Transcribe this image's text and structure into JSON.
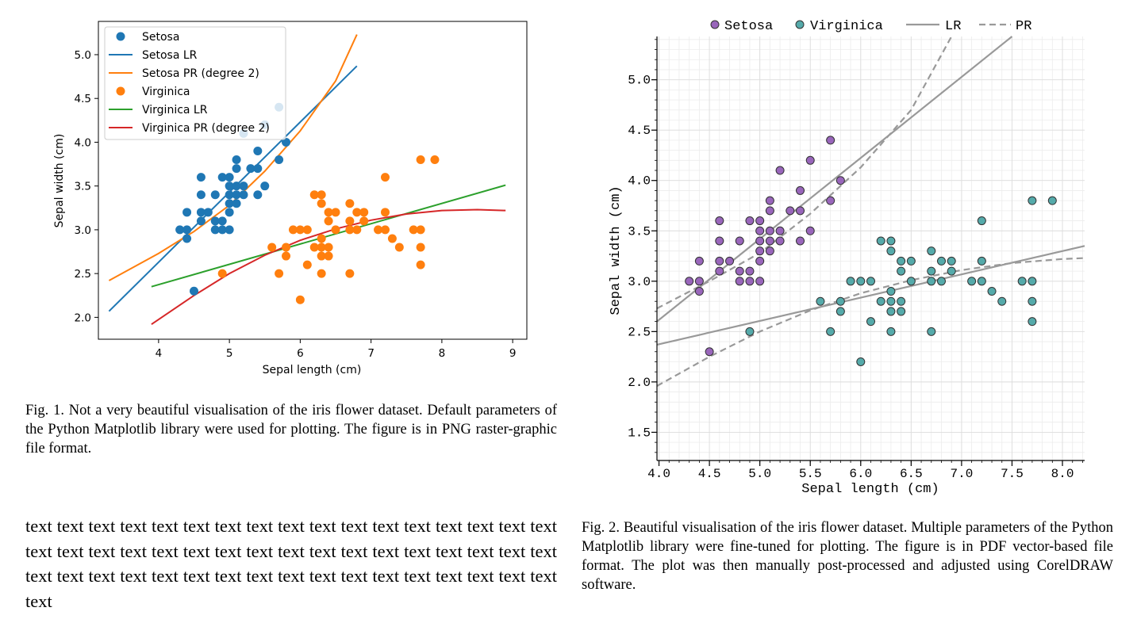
{
  "chart_data": [
    {
      "type": "scatter",
      "xlabel": "Sepal length (cm)",
      "ylabel": "Sepal width (cm)",
      "xlim": [
        3.15,
        9.2
      ],
      "ylim": [
        1.75,
        5.38
      ],
      "xticks": [
        4,
        5,
        6,
        7,
        8,
        9
      ],
      "yticks": [
        2.0,
        2.5,
        3.0,
        3.5,
        4.0,
        4.5,
        5.0
      ],
      "xtick_labels": [
        "4",
        "5",
        "6",
        "7",
        "8",
        "9"
      ],
      "ytick_labels": [
        "2.0",
        "2.5",
        "3.0",
        "3.5",
        "4.0",
        "4.5",
        "5.0"
      ],
      "legend_position": "upper-left",
      "legend": [
        "Setosa",
        "Setosa LR",
        "Setosa PR (degree 2)",
        "Virginica",
        "Virginica LR",
        "Virginica PR (degree 2)"
      ],
      "grid": false,
      "colors": {
        "setosa": "#1f77b4",
        "setosa_pr": "#ff7f0e",
        "virginica": "#ff7f0e",
        "virginica_lr": "#2ca02c",
        "virginica_pr": "#d62728"
      },
      "series": [
        {
          "name": "Setosa",
          "kind": "scatter",
          "points": [
            [
              4.3,
              3.0
            ],
            [
              4.4,
              2.9
            ],
            [
              4.4,
              3.0
            ],
            [
              4.4,
              3.2
            ],
            [
              4.5,
              2.3
            ],
            [
              4.6,
              3.1
            ],
            [
              4.6,
              3.2
            ],
            [
              4.6,
              3.4
            ],
            [
              4.6,
              3.6
            ],
            [
              4.7,
              3.2
            ],
            [
              4.8,
              3.0
            ],
            [
              4.8,
              3.1
            ],
            [
              4.8,
              3.4
            ],
            [
              4.9,
              3.0
            ],
            [
              4.9,
              3.1
            ],
            [
              4.9,
              3.6
            ],
            [
              5.0,
              3.0
            ],
            [
              5.0,
              3.2
            ],
            [
              5.0,
              3.3
            ],
            [
              5.0,
              3.4
            ],
            [
              5.0,
              3.5
            ],
            [
              5.0,
              3.6
            ],
            [
              5.1,
              3.3
            ],
            [
              5.1,
              3.4
            ],
            [
              5.1,
              3.5
            ],
            [
              5.1,
              3.7
            ],
            [
              5.1,
              3.8
            ],
            [
              5.2,
              3.4
            ],
            [
              5.2,
              3.5
            ],
            [
              5.2,
              4.1
            ],
            [
              5.3,
              3.7
            ],
            [
              5.4,
              3.4
            ],
            [
              5.4,
              3.7
            ],
            [
              5.4,
              3.9
            ],
            [
              5.5,
              3.5
            ],
            [
              5.5,
              4.2
            ],
            [
              5.7,
              3.8
            ],
            [
              5.7,
              4.4
            ],
            [
              5.8,
              4.0
            ]
          ]
        },
        {
          "name": "Setosa LR",
          "kind": "line",
          "points": [
            [
              3.3,
              2.07
            ],
            [
              6.8,
              4.87
            ]
          ]
        },
        {
          "name": "Setosa PR (degree 2)",
          "kind": "curve",
          "points": [
            [
              3.3,
              2.42
            ],
            [
              4.0,
              2.73
            ],
            [
              4.5,
              2.98
            ],
            [
              5.0,
              3.28
            ],
            [
              5.5,
              3.67
            ],
            [
              6.0,
              4.13
            ],
            [
              6.5,
              4.7
            ],
            [
              6.8,
              5.23
            ]
          ]
        },
        {
          "name": "Virginica",
          "kind": "scatter",
          "points": [
            [
              4.9,
              2.5
            ],
            [
              5.6,
              2.8
            ],
            [
              5.7,
              2.5
            ],
            [
              5.8,
              2.7
            ],
            [
              5.8,
              2.8
            ],
            [
              5.9,
              3.0
            ],
            [
              6.0,
              2.2
            ],
            [
              6.0,
              3.0
            ],
            [
              6.1,
              2.6
            ],
            [
              6.1,
              3.0
            ],
            [
              6.2,
              2.8
            ],
            [
              6.2,
              3.4
            ],
            [
              6.3,
              2.5
            ],
            [
              6.3,
              2.7
            ],
            [
              6.3,
              2.8
            ],
            [
              6.3,
              2.9
            ],
            [
              6.3,
              3.3
            ],
            [
              6.3,
              3.4
            ],
            [
              6.4,
              2.7
            ],
            [
              6.4,
              2.8
            ],
            [
              6.4,
              3.1
            ],
            [
              6.4,
              3.2
            ],
            [
              6.5,
              3.0
            ],
            [
              6.5,
              3.2
            ],
            [
              6.7,
              2.5
            ],
            [
              6.7,
              3.0
            ],
            [
              6.7,
              3.1
            ],
            [
              6.7,
              3.3
            ],
            [
              6.8,
              3.0
            ],
            [
              6.8,
              3.2
            ],
            [
              6.9,
              3.1
            ],
            [
              6.9,
              3.2
            ],
            [
              7.1,
              3.0
            ],
            [
              7.2,
              3.0
            ],
            [
              7.2,
              3.2
            ],
            [
              7.2,
              3.6
            ],
            [
              7.3,
              2.9
            ],
            [
              7.4,
              2.8
            ],
            [
              7.6,
              3.0
            ],
            [
              7.7,
              2.6
            ],
            [
              7.7,
              2.8
            ],
            [
              7.7,
              3.0
            ],
            [
              7.7,
              3.8
            ],
            [
              7.9,
              3.8
            ]
          ]
        },
        {
          "name": "Virginica LR",
          "kind": "line",
          "points": [
            [
              3.9,
              2.35
            ],
            [
              8.9,
              3.51
            ]
          ]
        },
        {
          "name": "Virginica PR (degree 2)",
          "kind": "curve",
          "points": [
            [
              3.9,
              1.92
            ],
            [
              4.5,
              2.25
            ],
            [
              5.0,
              2.5
            ],
            [
              5.5,
              2.71
            ],
            [
              6.0,
              2.88
            ],
            [
              6.5,
              3.01
            ],
            [
              7.0,
              3.11
            ],
            [
              7.5,
              3.18
            ],
            [
              8.0,
              3.22
            ],
            [
              8.5,
              3.23
            ],
            [
              8.9,
              3.22
            ]
          ]
        }
      ]
    },
    {
      "type": "scatter",
      "xlabel": "Sepal length (cm)",
      "ylabel": "Sepal width (cm)",
      "xlim": [
        3.98,
        8.22
      ],
      "ylim": [
        1.22,
        5.43
      ],
      "xticks": [
        4.0,
        4.5,
        5.0,
        5.5,
        6.0,
        6.5,
        7.0,
        7.5,
        8.0
      ],
      "yticks": [
        1.5,
        2.0,
        2.5,
        3.0,
        3.5,
        4.0,
        4.5,
        5.0
      ],
      "xtick_labels": [
        "4.0",
        "4.5",
        "5.0",
        "5.5",
        "6.0",
        "6.5",
        "7.0",
        "7.5",
        "8.0"
      ],
      "ytick_labels": [
        "1.5",
        "2.0",
        "2.5",
        "3.0",
        "3.5",
        "4.0",
        "4.5",
        "5.0"
      ],
      "legend_position": "top",
      "legend": [
        "Setosa",
        "Virginica",
        "LR",
        "PR"
      ],
      "grid": true,
      "colors": {
        "setosa": "#9966bb",
        "virginica": "#55aaaa",
        "fit": "#999999"
      },
      "series": [
        {
          "name": "Setosa",
          "kind": "scatter",
          "points": [
            [
              4.3,
              3.0
            ],
            [
              4.4,
              2.9
            ],
            [
              4.4,
              3.0
            ],
            [
              4.4,
              3.2
            ],
            [
              4.5,
              2.3
            ],
            [
              4.6,
              3.1
            ],
            [
              4.6,
              3.2
            ],
            [
              4.6,
              3.4
            ],
            [
              4.6,
              3.6
            ],
            [
              4.7,
              3.2
            ],
            [
              4.8,
              3.0
            ],
            [
              4.8,
              3.1
            ],
            [
              4.8,
              3.4
            ],
            [
              4.9,
              3.0
            ],
            [
              4.9,
              3.1
            ],
            [
              4.9,
              3.6
            ],
            [
              5.0,
              3.0
            ],
            [
              5.0,
              3.2
            ],
            [
              5.0,
              3.3
            ],
            [
              5.0,
              3.4
            ],
            [
              5.0,
              3.5
            ],
            [
              5.0,
              3.6
            ],
            [
              5.1,
              3.3
            ],
            [
              5.1,
              3.4
            ],
            [
              5.1,
              3.5
            ],
            [
              5.1,
              3.7
            ],
            [
              5.1,
              3.8
            ],
            [
              5.2,
              3.4
            ],
            [
              5.2,
              3.5
            ],
            [
              5.2,
              4.1
            ],
            [
              5.3,
              3.7
            ],
            [
              5.4,
              3.4
            ],
            [
              5.4,
              3.7
            ],
            [
              5.4,
              3.9
            ],
            [
              5.5,
              3.5
            ],
            [
              5.5,
              4.2
            ],
            [
              5.7,
              3.8
            ],
            [
              5.7,
              4.4
            ],
            [
              5.8,
              4.0
            ]
          ]
        },
        {
          "name": "Virginica",
          "kind": "scatter",
          "points": [
            [
              4.9,
              2.5
            ],
            [
              5.6,
              2.8
            ],
            [
              5.7,
              2.5
            ],
            [
              5.8,
              2.7
            ],
            [
              5.8,
              2.8
            ],
            [
              5.9,
              3.0
            ],
            [
              6.0,
              2.2
            ],
            [
              6.0,
              3.0
            ],
            [
              6.1,
              2.6
            ],
            [
              6.1,
              3.0
            ],
            [
              6.2,
              2.8
            ],
            [
              6.2,
              3.4
            ],
            [
              6.3,
              2.5
            ],
            [
              6.3,
              2.7
            ],
            [
              6.3,
              2.8
            ],
            [
              6.3,
              2.9
            ],
            [
              6.3,
              3.3
            ],
            [
              6.3,
              3.4
            ],
            [
              6.4,
              2.7
            ],
            [
              6.4,
              2.8
            ],
            [
              6.4,
              3.1
            ],
            [
              6.4,
              3.2
            ],
            [
              6.5,
              3.0
            ],
            [
              6.5,
              3.2
            ],
            [
              6.7,
              2.5
            ],
            [
              6.7,
              3.0
            ],
            [
              6.7,
              3.1
            ],
            [
              6.7,
              3.3
            ],
            [
              6.8,
              3.0
            ],
            [
              6.8,
              3.2
            ],
            [
              6.9,
              3.1
            ],
            [
              6.9,
              3.2
            ],
            [
              7.1,
              3.0
            ],
            [
              7.2,
              3.0
            ],
            [
              7.2,
              3.2
            ],
            [
              7.2,
              3.6
            ],
            [
              7.3,
              2.9
            ],
            [
              7.4,
              2.8
            ],
            [
              7.6,
              3.0
            ],
            [
              7.7,
              2.6
            ],
            [
              7.7,
              2.8
            ],
            [
              7.7,
              3.0
            ],
            [
              7.7,
              3.8
            ],
            [
              7.9,
              3.8
            ]
          ]
        },
        {
          "name": "LR",
          "kind": "line",
          "points": [
            [
              3.98,
              2.6
            ],
            [
              7.5,
              5.43
            ]
          ]
        },
        {
          "name": "LR",
          "kind": "line",
          "points": [
            [
              3.98,
              2.37
            ],
            [
              8.22,
              3.35
            ]
          ]
        },
        {
          "name": "PR",
          "kind": "curve-dashed",
          "points": [
            [
              3.98,
              2.73
            ],
            [
              4.5,
              3.0
            ],
            [
              5.0,
              3.28
            ],
            [
              5.5,
              3.67
            ],
            [
              6.0,
              4.13
            ],
            [
              6.5,
              4.7
            ],
            [
              6.9,
              5.43
            ]
          ]
        },
        {
          "name": "PR",
          "kind": "curve-dashed",
          "points": [
            [
              3.98,
              1.96
            ],
            [
              4.5,
              2.25
            ],
            [
              5.0,
              2.5
            ],
            [
              5.5,
              2.71
            ],
            [
              6.0,
              2.88
            ],
            [
              6.5,
              3.01
            ],
            [
              7.0,
              3.11
            ],
            [
              7.5,
              3.18
            ],
            [
              8.0,
              3.22
            ],
            [
              8.22,
              3.23
            ]
          ]
        }
      ]
    }
  ],
  "captions": {
    "fig1": "Fig. 1.  Not a very beautiful visualisation of the iris flower dataset. Default parameters of the Python Matplotlib library were used for plotting. The figure is in PNG raster-graphic file format.",
    "fig2": "Fig. 2.  Beautiful visualisation of the iris flower dataset. Multiple parameters of the Python Matplotlib library were fine-tuned for plotting. The figure is in PDF vector-based file format. The plot was then manually post-processed and adjusted using CorelDRAW software."
  },
  "body_text": "text text text text text text text text text text text text text text text text text text text text text text text text text text text text text text text text text text text text text text text text text text text text text text text text text text text text"
}
